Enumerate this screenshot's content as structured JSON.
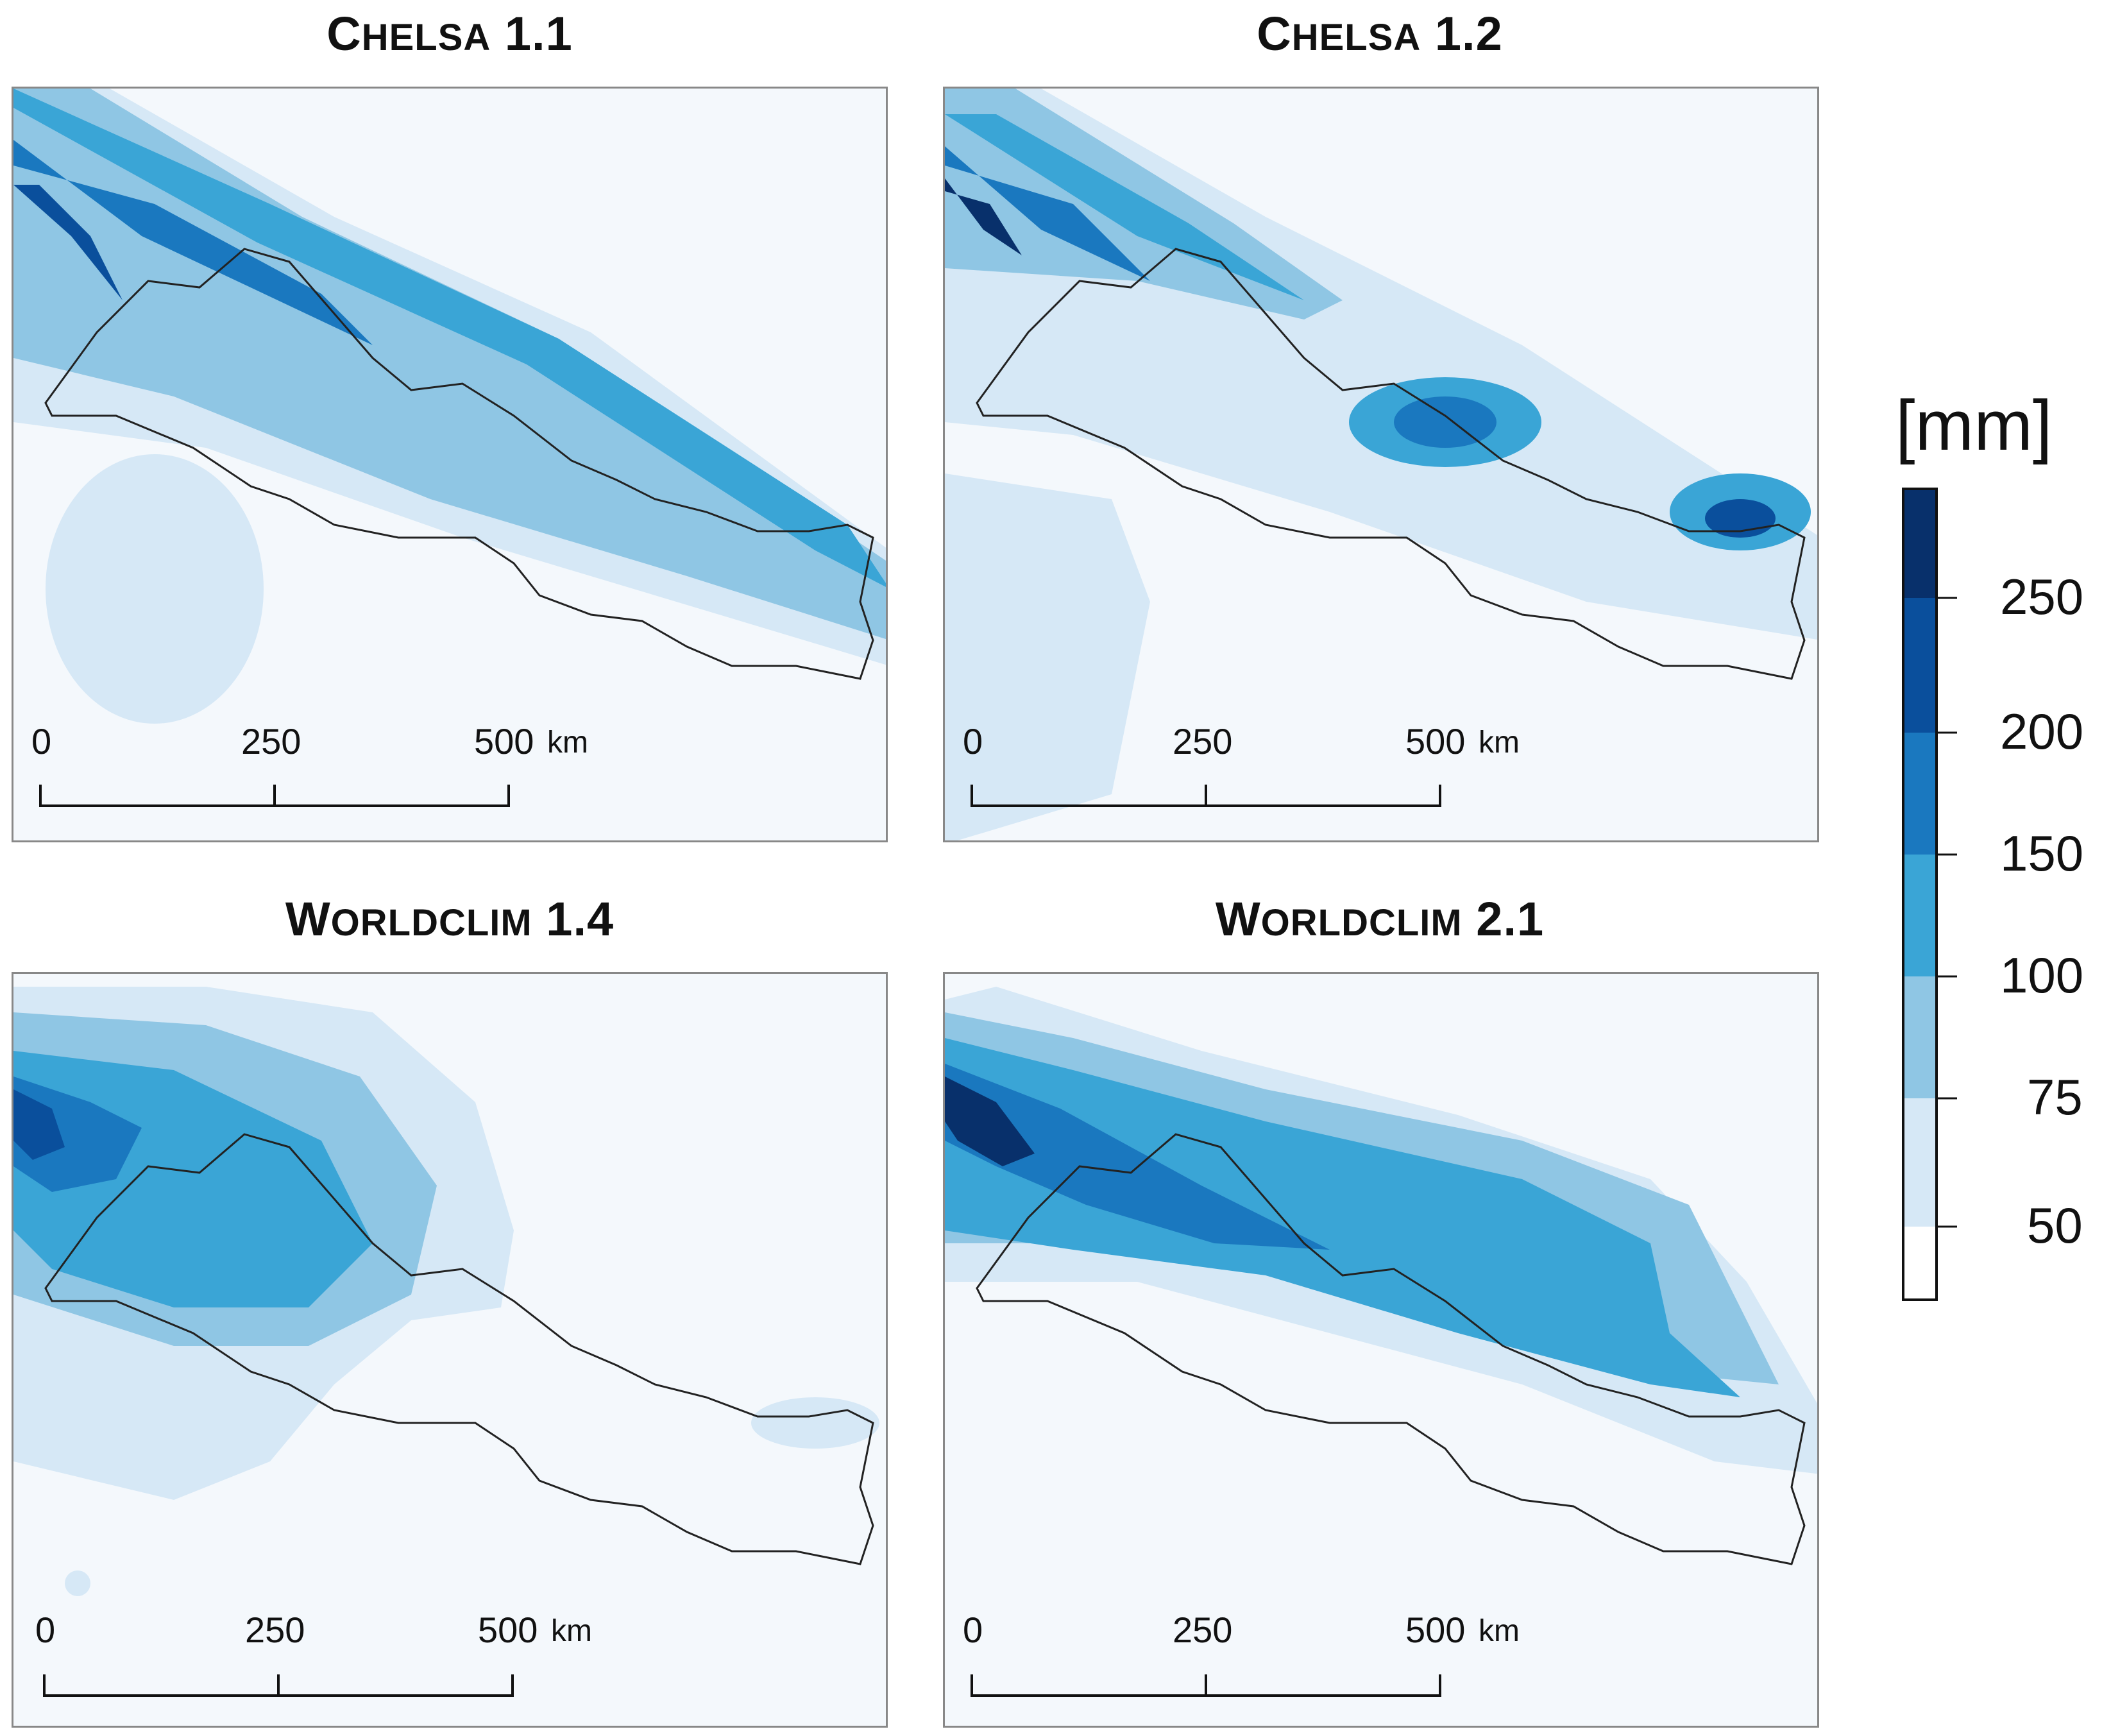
{
  "panels": [
    {
      "title_lead": "C",
      "title_rest": "HELSA",
      "title_num": " 1.1"
    },
    {
      "title_lead": "C",
      "title_rest": "HELSA",
      "title_num": " 1.2"
    },
    {
      "title_lead": "W",
      "title_rest": "ORLDCLIM",
      "title_num": " 1.4"
    },
    {
      "title_lead": "W",
      "title_rest": "ORLDCLIM",
      "title_num": " 2.1"
    }
  ],
  "scale_bar": {
    "labels": [
      "0",
      "250",
      "500"
    ],
    "unit": "km"
  },
  "legend": {
    "title": "[mm]",
    "ticks": [
      "250",
      "200",
      "150",
      "100",
      "75",
      "50"
    ],
    "colors": [
      "#08306b",
      "#0a4f9c",
      "#1a78bf",
      "#3aa5d6",
      "#8fc6e4",
      "#d6e8f6",
      "#ffffff"
    ]
  }
}
